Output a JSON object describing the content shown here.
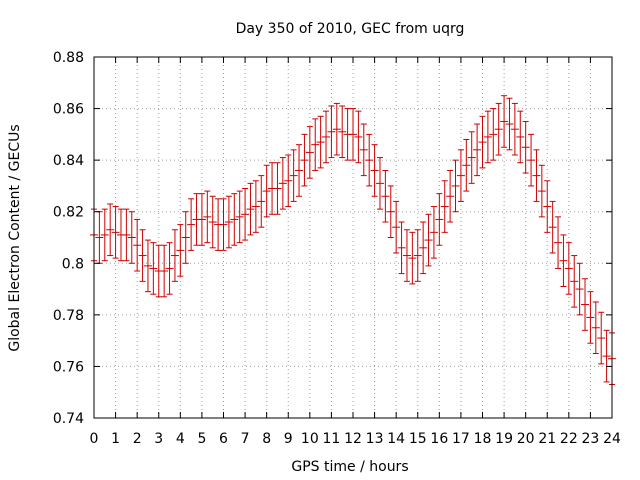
{
  "chart_data": {
    "type": "scatter",
    "title": "Day 350 of 2010, GEC from uqrg",
    "xlabel": "GPS time / hours",
    "ylabel": "Global Electron Content / GECUs",
    "xlim": [
      0,
      24
    ],
    "ylim": [
      0.74,
      0.88
    ],
    "xticks": [
      "0",
      "1",
      "2",
      "3",
      "4",
      "5",
      "6",
      "7",
      "8",
      "9",
      "10",
      "11",
      "12",
      "13",
      "14",
      "15",
      "16",
      "17",
      "18",
      "19",
      "20",
      "21",
      "22",
      "23",
      "24"
    ],
    "yticks": [
      "0.74",
      "0.76",
      "0.78",
      "0.8",
      "0.82",
      "0.84",
      "0.86",
      "0.88"
    ],
    "grid": true,
    "error_bar": 0.01,
    "color": "#cc0000",
    "x": [
      0,
      0.25,
      0.5,
      0.75,
      1,
      1.25,
      1.5,
      1.75,
      2,
      2.25,
      2.5,
      2.75,
      3,
      3.25,
      3.5,
      3.75,
      4,
      4.25,
      4.5,
      4.75,
      5,
      5.25,
      5.5,
      5.75,
      6,
      6.25,
      6.5,
      6.75,
      7,
      7.25,
      7.5,
      7.75,
      8,
      8.25,
      8.5,
      8.75,
      9,
      9.25,
      9.5,
      9.75,
      10,
      10.25,
      10.5,
      10.75,
      11,
      11.25,
      11.5,
      11.75,
      12,
      12.25,
      12.5,
      12.75,
      13,
      13.25,
      13.5,
      13.75,
      14,
      14.25,
      14.5,
      14.75,
      15,
      15.25,
      15.5,
      15.75,
      16,
      16.25,
      16.5,
      16.75,
      17,
      17.25,
      17.5,
      17.75,
      18,
      18.25,
      18.5,
      18.75,
      19,
      19.25,
      19.5,
      19.75,
      20,
      20.25,
      20.5,
      20.75,
      21,
      21.25,
      21.5,
      21.75,
      22,
      22.25,
      22.5,
      22.75,
      23,
      23.25,
      23.5,
      23.75,
      24
    ],
    "y": [
      0.811,
      0.81,
      0.811,
      0.813,
      0.812,
      0.811,
      0.811,
      0.81,
      0.807,
      0.803,
      0.799,
      0.798,
      0.797,
      0.797,
      0.798,
      0.803,
      0.805,
      0.81,
      0.815,
      0.817,
      0.817,
      0.818,
      0.816,
      0.815,
      0.815,
      0.816,
      0.817,
      0.818,
      0.819,
      0.821,
      0.822,
      0.824,
      0.828,
      0.829,
      0.829,
      0.831,
      0.832,
      0.834,
      0.836,
      0.84,
      0.843,
      0.846,
      0.847,
      0.849,
      0.851,
      0.852,
      0.851,
      0.85,
      0.85,
      0.849,
      0.844,
      0.84,
      0.836,
      0.831,
      0.826,
      0.82,
      0.814,
      0.806,
      0.803,
      0.802,
      0.803,
      0.806,
      0.809,
      0.812,
      0.817,
      0.822,
      0.826,
      0.83,
      0.834,
      0.838,
      0.841,
      0.844,
      0.847,
      0.849,
      0.85,
      0.852,
      0.855,
      0.854,
      0.852,
      0.849,
      0.845,
      0.84,
      0.834,
      0.828,
      0.822,
      0.814,
      0.808,
      0.801,
      0.798,
      0.793,
      0.79,
      0.784,
      0.779,
      0.775,
      0.771,
      0.764,
      0.763
    ]
  }
}
